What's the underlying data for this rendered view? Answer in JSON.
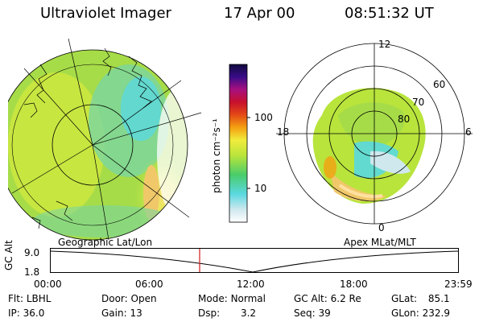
{
  "header": {
    "title": "Ultraviolet Imager",
    "date": "17 Apr 00",
    "time": "08:51:32 UT"
  },
  "colorbar": {
    "unit_label": "photon cm⁻²s⁻¹",
    "ticks": [
      "100",
      "10"
    ],
    "colors": [
      "#ffffff",
      "#cfe8ee",
      "#5ad8e0",
      "#49cc6a",
      "#b8e43c",
      "#f0ec3c",
      "#f4a012",
      "#e44a16",
      "#c8102c",
      "#a8107e",
      "#3a0c8a",
      "#100a3c"
    ]
  },
  "left_map": {
    "caption": "Geographic Lat/Lon"
  },
  "right_map": {
    "caption": "Apex MLat/MLT",
    "mlt_labels": [
      "12",
      "6",
      "18",
      "0"
    ],
    "lat_labels": [
      "60",
      "70",
      "80"
    ]
  },
  "altitude_plot": {
    "ylabel": "GC Alt",
    "yticks": [
      "9.0",
      "1.8"
    ],
    "xticks": [
      "00:00",
      "06:00",
      "12:00",
      "18:00",
      "23:59"
    ],
    "marker_color": "#d01818"
  },
  "info": {
    "row1": [
      {
        "label": "Flt:",
        "value": "LBHL"
      },
      {
        "label": "Door:",
        "value": "Open"
      },
      {
        "label": "Mode:",
        "value": "Normal"
      },
      {
        "label": "GC Alt:",
        "value": "6.2 Re"
      },
      {
        "label": "GLat:",
        "value": "85.1"
      }
    ],
    "row2": [
      {
        "label": "IP:",
        "value": "36.0"
      },
      {
        "label": "Gain:",
        "value": "13"
      },
      {
        "label": "Dsp:",
        "value": "3.2"
      },
      {
        "label": "Seq:",
        "value": "39"
      },
      {
        "label": "GLon:",
        "value": "232.9"
      }
    ]
  }
}
